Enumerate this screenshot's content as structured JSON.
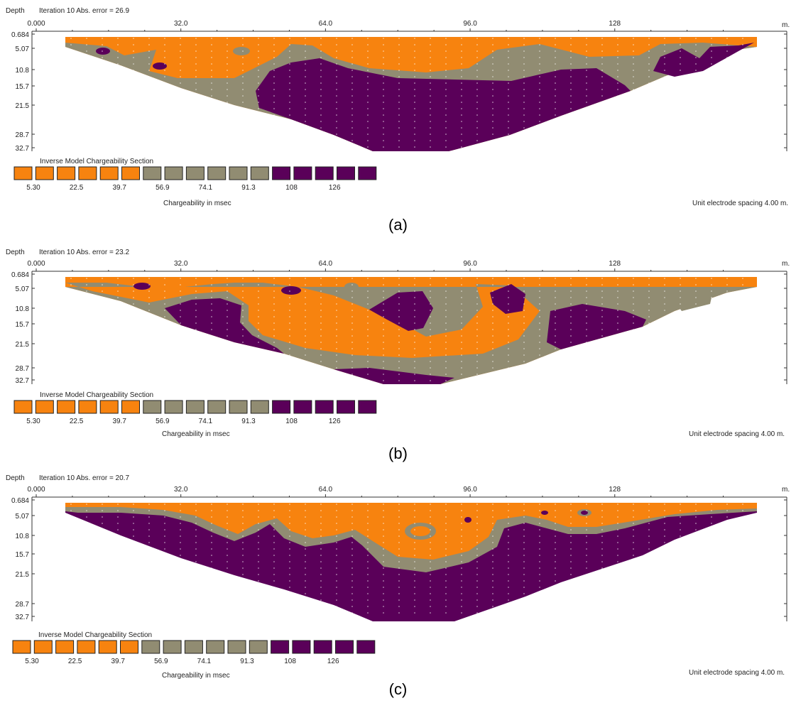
{
  "colors": {
    "low": "#f7830f",
    "mid": "#918c72",
    "high": "#5a0059",
    "grid_dot": "#ffffff",
    "axis": "#333333"
  },
  "common": {
    "depth_label": "Depth",
    "unit_label": "m.",
    "legend_title": "Inverse Model Chargeability Section",
    "legend_unit": "Chargeability in msec",
    "electrode_spacing": "Unit electrode spacing 4.00 m."
  },
  "chart_data": [
    {
      "type": "heatmap",
      "caption": "(a)",
      "iteration_text": "Iteration 10 Abs. error = 26.9",
      "x_ticks": [
        "0.000",
        "32.0",
        "64.0",
        "96.0",
        "128"
      ],
      "x_tick_values": [
        0,
        32,
        64,
        96,
        128
      ],
      "xlim": [
        0,
        156
      ],
      "xlabel": "m.",
      "y_ticks": [
        "0.684",
        "5.07",
        "10.8",
        "15.7",
        "21.5",
        "28.7",
        "32.7"
      ],
      "ylabel": "Depth",
      "legend_levels": [
        "5.30",
        "22.5",
        "39.7",
        "56.9",
        "74.1",
        "91.3",
        "108",
        "126"
      ],
      "legend_colors": [
        "#f7830f",
        "#f7830f",
        "#f7830f",
        "#f7830f",
        "#f7830f",
        "#f7830f",
        "#918c72",
        "#918c72",
        "#918c72",
        "#918c72",
        "#918c72",
        "#918c72",
        "#5a0059",
        "#5a0059",
        "#5a0059",
        "#5a0059",
        "#5a0059"
      ]
    },
    {
      "type": "heatmap",
      "caption": "(b)",
      "iteration_text": "Iteration 10 Abs. error = 23.2",
      "x_ticks": [
        "0.000",
        "32.0",
        "64.0",
        "96.0",
        "128"
      ],
      "x_tick_values": [
        0,
        32,
        64,
        96,
        128
      ],
      "xlim": [
        0,
        156
      ],
      "xlabel": "m.",
      "y_ticks": [
        "0.684",
        "5.07",
        "10.8",
        "15.7",
        "21.5",
        "28.7",
        "32.7"
      ],
      "ylabel": "Depth",
      "legend_levels": [
        "5.30",
        "22.5",
        "39.7",
        "56.9",
        "74.1",
        "91.3",
        "108",
        "126"
      ],
      "legend_colors": [
        "#f7830f",
        "#f7830f",
        "#f7830f",
        "#f7830f",
        "#f7830f",
        "#f7830f",
        "#918c72",
        "#918c72",
        "#918c72",
        "#918c72",
        "#918c72",
        "#918c72",
        "#5a0059",
        "#5a0059",
        "#5a0059",
        "#5a0059",
        "#5a0059"
      ]
    },
    {
      "type": "heatmap",
      "caption": "(c)",
      "iteration_text": "Iteration 10 Abs. error = 20.7",
      "x_ticks": [
        "0.000",
        "32.0",
        "64.0",
        "96.0",
        "128"
      ],
      "x_tick_values": [
        0,
        32,
        64,
        96,
        128
      ],
      "xlim": [
        0,
        156
      ],
      "xlabel": "m.",
      "y_ticks": [
        "0.684",
        "5.07",
        "10.8",
        "15.7",
        "21.5",
        "28.7",
        "32.7"
      ],
      "ylabel": "Depth",
      "legend_levels": [
        "5.30",
        "22.5",
        "39.7",
        "56.9",
        "74.1",
        "91.3",
        "108",
        "126"
      ],
      "legend_colors": [
        "#f7830f",
        "#f7830f",
        "#f7830f",
        "#f7830f",
        "#f7830f",
        "#f7830f",
        "#918c72",
        "#918c72",
        "#918c72",
        "#918c72",
        "#918c72",
        "#918c72",
        "#5a0059",
        "#5a0059",
        "#5a0059",
        "#5a0059",
        "#5a0059"
      ]
    }
  ]
}
